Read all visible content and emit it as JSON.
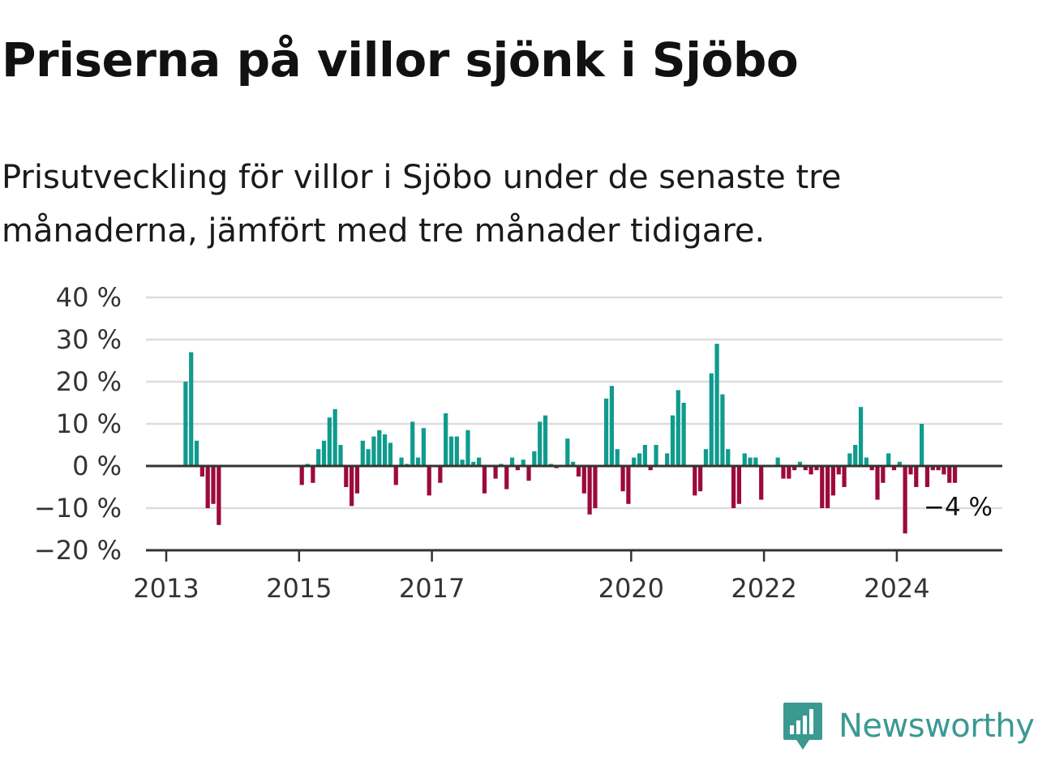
{
  "header": {
    "title": "Priserna på villor sjönk i Sjöbo",
    "subtitle": "Prisutveckling för villor i Sjöbo under de senaste tre månaderna, jämfört med tre månader tidigare."
  },
  "brand": {
    "name": "Newsworthy",
    "icon": "newsworthy-logo-icon"
  },
  "colors": {
    "positive": "#0f9b8e",
    "negative": "#9c0a3c",
    "grid": "#dddddd",
    "axis": "#333333",
    "brand": "#3a9a92"
  },
  "chart_data": {
    "type": "bar",
    "x_type": "date",
    "ylim": [
      -20,
      40
    ],
    "y_ticks": [
      40,
      30,
      20,
      10,
      0,
      -10,
      -20
    ],
    "y_tick_labels": [
      "40 %",
      "30 %",
      "20 %",
      "10 %",
      "0 %",
      "−10 %",
      "−20 %"
    ],
    "x_ticks": [
      "2013",
      "2015",
      "2017",
      "2020",
      "2022",
      "2024"
    ],
    "grid": true,
    "last_value_label": "−4 %",
    "bars": [
      {
        "x": "2013-04",
        "value": 20
      },
      {
        "x": "2013-05",
        "value": 27
      },
      {
        "x": "2013-06",
        "value": 6
      },
      {
        "x": "2013-07",
        "value": -2.5
      },
      {
        "x": "2013-08",
        "value": -10
      },
      {
        "x": "2013-09",
        "value": -9
      },
      {
        "x": "2013-10",
        "value": -14
      },
      {
        "x": "2015-01",
        "value": -4.5
      },
      {
        "x": "2015-02",
        "value": 0.5
      },
      {
        "x": "2015-03",
        "value": -4
      },
      {
        "x": "2015-04",
        "value": 4
      },
      {
        "x": "2015-05",
        "value": 6
      },
      {
        "x": "2015-06",
        "value": 11.5
      },
      {
        "x": "2015-07",
        "value": 13.5
      },
      {
        "x": "2015-08",
        "value": 5
      },
      {
        "x": "2015-09",
        "value": -5
      },
      {
        "x": "2015-10",
        "value": -9.5
      },
      {
        "x": "2015-11",
        "value": -6.5
      },
      {
        "x": "2015-12",
        "value": 6
      },
      {
        "x": "2016-01",
        "value": 4
      },
      {
        "x": "2016-02",
        "value": 7
      },
      {
        "x": "2016-03",
        "value": 8.5
      },
      {
        "x": "2016-04",
        "value": 7.5
      },
      {
        "x": "2016-05",
        "value": 5.5
      },
      {
        "x": "2016-06",
        "value": -4.5
      },
      {
        "x": "2016-07",
        "value": 2
      },
      {
        "x": "2016-08",
        "value": 0.5
      },
      {
        "x": "2016-09",
        "value": 10.5
      },
      {
        "x": "2016-10",
        "value": 2
      },
      {
        "x": "2016-11",
        "value": 9
      },
      {
        "x": "2016-12",
        "value": -7
      },
      {
        "x": "2017-01",
        "value": 0
      },
      {
        "x": "2017-02",
        "value": -4
      },
      {
        "x": "2017-03",
        "value": 12.5
      },
      {
        "x": "2017-04",
        "value": 7
      },
      {
        "x": "2017-05",
        "value": 7
      },
      {
        "x": "2017-06",
        "value": 1.5
      },
      {
        "x": "2017-07",
        "value": 8.5
      },
      {
        "x": "2017-08",
        "value": 1
      },
      {
        "x": "2017-09",
        "value": 2
      },
      {
        "x": "2017-10",
        "value": -6.5
      },
      {
        "x": "2017-11",
        "value": 0
      },
      {
        "x": "2017-12",
        "value": -3
      },
      {
        "x": "2018-01",
        "value": 0.5
      },
      {
        "x": "2018-02",
        "value": -5.5
      },
      {
        "x": "2018-03",
        "value": 2
      },
      {
        "x": "2018-04",
        "value": -1
      },
      {
        "x": "2018-05",
        "value": 1.5
      },
      {
        "x": "2018-06",
        "value": -3.5
      },
      {
        "x": "2018-07",
        "value": 3.5
      },
      {
        "x": "2018-08",
        "value": 10.5
      },
      {
        "x": "2018-09",
        "value": 12
      },
      {
        "x": "2018-10",
        "value": 0.5
      },
      {
        "x": "2018-11",
        "value": -0.5
      },
      {
        "x": "2018-12",
        "value": 0
      },
      {
        "x": "2019-01",
        "value": 6.5
      },
      {
        "x": "2019-02",
        "value": 1
      },
      {
        "x": "2019-03",
        "value": -2.5
      },
      {
        "x": "2019-04",
        "value": -6.5
      },
      {
        "x": "2019-05",
        "value": -11.5
      },
      {
        "x": "2019-06",
        "value": -10
      },
      {
        "x": "2019-07",
        "value": 0
      },
      {
        "x": "2019-08",
        "value": 16
      },
      {
        "x": "2019-09",
        "value": 19
      },
      {
        "x": "2019-10",
        "value": 4
      },
      {
        "x": "2019-11",
        "value": -6
      },
      {
        "x": "2019-12",
        "value": -9
      },
      {
        "x": "2020-01",
        "value": 2
      },
      {
        "x": "2020-02",
        "value": 3
      },
      {
        "x": "2020-03",
        "value": 5
      },
      {
        "x": "2020-04",
        "value": -1
      },
      {
        "x": "2020-05",
        "value": 5
      },
      {
        "x": "2020-06",
        "value": 0
      },
      {
        "x": "2020-07",
        "value": 3
      },
      {
        "x": "2020-08",
        "value": 12
      },
      {
        "x": "2020-09",
        "value": 18
      },
      {
        "x": "2020-10",
        "value": 15
      },
      {
        "x": "2020-11",
        "value": 0
      },
      {
        "x": "2020-12",
        "value": -7
      },
      {
        "x": "2021-01",
        "value": -6
      },
      {
        "x": "2021-02",
        "value": 4
      },
      {
        "x": "2021-03",
        "value": 22
      },
      {
        "x": "2021-04",
        "value": 29
      },
      {
        "x": "2021-05",
        "value": 17
      },
      {
        "x": "2021-06",
        "value": 4
      },
      {
        "x": "2021-07",
        "value": -10
      },
      {
        "x": "2021-08",
        "value": -9
      },
      {
        "x": "2021-09",
        "value": 3
      },
      {
        "x": "2021-10",
        "value": 2
      },
      {
        "x": "2021-11",
        "value": 2
      },
      {
        "x": "2021-12",
        "value": -8
      },
      {
        "x": "2022-01",
        "value": 0
      },
      {
        "x": "2022-02",
        "value": 0
      },
      {
        "x": "2022-03",
        "value": 2
      },
      {
        "x": "2022-04",
        "value": -3
      },
      {
        "x": "2022-05",
        "value": -3
      },
      {
        "x": "2022-06",
        "value": -1
      },
      {
        "x": "2022-07",
        "value": 1
      },
      {
        "x": "2022-08",
        "value": -1
      },
      {
        "x": "2022-09",
        "value": -2
      },
      {
        "x": "2022-10",
        "value": -1
      },
      {
        "x": "2022-11",
        "value": -10
      },
      {
        "x": "2022-12",
        "value": -10
      },
      {
        "x": "2023-01",
        "value": -7
      },
      {
        "x": "2023-02",
        "value": -2
      },
      {
        "x": "2023-03",
        "value": -5
      },
      {
        "x": "2023-04",
        "value": 3
      },
      {
        "x": "2023-05",
        "value": 5
      },
      {
        "x": "2023-06",
        "value": 14
      },
      {
        "x": "2023-07",
        "value": 2
      },
      {
        "x": "2023-08",
        "value": -1
      },
      {
        "x": "2023-09",
        "value": -8
      },
      {
        "x": "2023-10",
        "value": -4
      },
      {
        "x": "2023-11",
        "value": 3
      },
      {
        "x": "2023-12",
        "value": -1
      },
      {
        "x": "2024-01",
        "value": 1
      },
      {
        "x": "2024-02",
        "value": -16
      },
      {
        "x": "2024-03",
        "value": -2
      },
      {
        "x": "2024-04",
        "value": -5
      },
      {
        "x": "2024-05",
        "value": 10
      },
      {
        "x": "2024-06",
        "value": -5
      },
      {
        "x": "2024-07",
        "value": -1
      },
      {
        "x": "2024-08",
        "value": -1
      },
      {
        "x": "2024-09",
        "value": -2
      },
      {
        "x": "2024-10",
        "value": -4
      },
      {
        "x": "2024-11",
        "value": -4
      }
    ]
  }
}
